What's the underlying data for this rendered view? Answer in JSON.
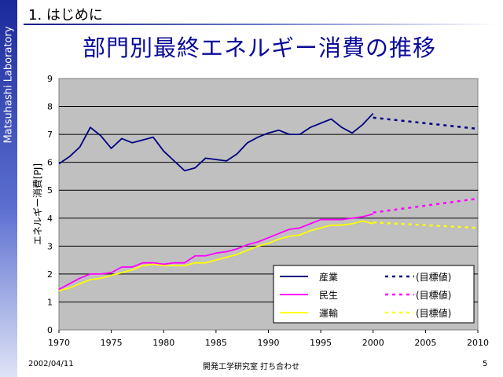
{
  "sidebar": {
    "label": "Matsuhashi Laboratory"
  },
  "slide": {
    "section": "1. はじめに",
    "title": "部門別最終エネルギー消費の推移"
  },
  "footer": {
    "date": "2002/04/11",
    "title": "開発工学研究室 打ち合わせ",
    "page": "5"
  },
  "colors": {
    "plot_bg": "#c0c0c0",
    "industry": "#000080",
    "residential": "#ff00ff",
    "transport": "#ffff00"
  },
  "chart_data": {
    "type": "line",
    "title": "",
    "xlabel": "",
    "ylabel": "エネルギー消費[PJ]",
    "xlim": [
      1970,
      2010
    ],
    "ylim": [
      0,
      9
    ],
    "x_ticks": [
      1970,
      1975,
      1980,
      1985,
      1990,
      1995,
      2000,
      2005,
      2010
    ],
    "y_ticks": [
      0,
      1,
      2,
      3,
      4,
      5,
      6,
      7,
      8,
      9
    ],
    "grid": true,
    "legend_position": "bottom-right",
    "x": [
      1970,
      1971,
      1972,
      1973,
      1974,
      1975,
      1976,
      1977,
      1978,
      1979,
      1980,
      1981,
      1982,
      1983,
      1984,
      1985,
      1986,
      1987,
      1988,
      1989,
      1990,
      1991,
      1992,
      1993,
      1994,
      1995,
      1996,
      1997,
      1998,
      1999,
      2000
    ],
    "series": [
      {
        "name": "産業",
        "color": "#000080",
        "style": "solid",
        "values": [
          5.95,
          6.2,
          6.55,
          7.25,
          6.95,
          6.5,
          6.85,
          6.7,
          6.8,
          6.9,
          6.4,
          6.05,
          5.7,
          5.8,
          6.15,
          6.1,
          6.05,
          6.3,
          6.7,
          6.9,
          7.05,
          7.15,
          7.0,
          7.0,
          7.25,
          7.4,
          7.55,
          7.25,
          7.05,
          7.35,
          7.75
        ]
      },
      {
        "name": "民生",
        "color": "#ff00ff",
        "style": "solid",
        "values": [
          1.45,
          1.65,
          1.85,
          2.0,
          2.0,
          2.05,
          2.25,
          2.25,
          2.4,
          2.4,
          2.35,
          2.4,
          2.4,
          2.65,
          2.65,
          2.75,
          2.8,
          2.9,
          3.05,
          3.15,
          3.3,
          3.45,
          3.6,
          3.65,
          3.8,
          3.95,
          3.95,
          3.95,
          4.0,
          4.05,
          4.15
        ]
      },
      {
        "name": "運輸",
        "color": "#ffff00",
        "style": "solid",
        "values": [
          1.4,
          1.5,
          1.65,
          1.8,
          1.85,
          1.95,
          2.05,
          2.15,
          2.3,
          2.35,
          2.3,
          2.3,
          2.3,
          2.4,
          2.4,
          2.5,
          2.6,
          2.7,
          2.85,
          3.0,
          3.1,
          3.25,
          3.35,
          3.4,
          3.55,
          3.65,
          3.75,
          3.75,
          3.8,
          3.9,
          3.8
        ]
      }
    ],
    "targets": [
      {
        "name": "(目標値)",
        "color": "#000080",
        "style": "dashed",
        "x": [
          2000,
          2010
        ],
        "values": [
          7.6,
          7.2
        ]
      },
      {
        "name": "(目標値)",
        "color": "#ff00ff",
        "style": "dashed",
        "x": [
          2000,
          2010
        ],
        "values": [
          4.2,
          4.7
        ]
      },
      {
        "name": "(目標値)",
        "color": "#ffff00",
        "style": "dashed",
        "x": [
          2000,
          2010
        ],
        "values": [
          3.85,
          3.65
        ]
      }
    ]
  }
}
